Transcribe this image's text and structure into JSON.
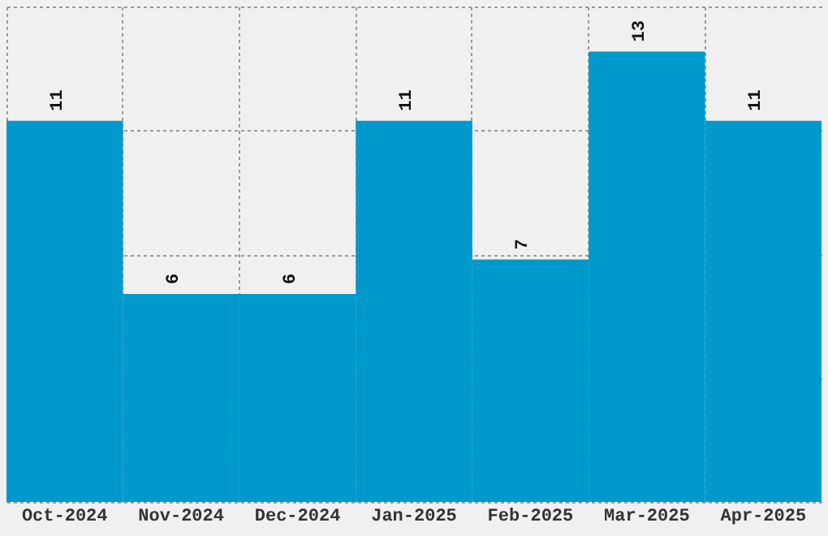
{
  "chart_data": {
    "type": "bar",
    "categories": [
      "Oct-2024",
      "Nov-2024",
      "Dec-2024",
      "Jan-2025",
      "Feb-2025",
      "Mar-2025",
      "Apr-2025"
    ],
    "values": [
      11,
      6,
      6,
      11,
      7,
      13,
      11
    ],
    "color": "#0099cc",
    "ylim": [
      0,
      14.3
    ],
    "yticks": [
      {
        "value": 0,
        "label": null
      },
      {
        "value": 3.575,
        "label": null
      },
      {
        "value": 7.15,
        "label": null
      },
      {
        "value": 10.725,
        "label": null
      },
      {
        "value": 14.3,
        "label": null
      }
    ],
    "grid": true,
    "data_labels": true,
    "tick_labels": "x"
  }
}
